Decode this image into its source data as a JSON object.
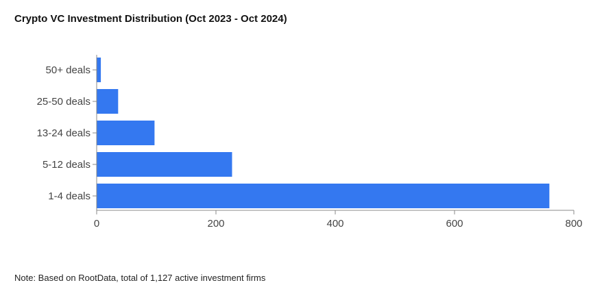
{
  "title": "Crypto VC Investment Distribution (Oct 2023 - Oct 2024)",
  "note": "Note: Based on RootData, total of 1,127 active investment firms",
  "chart_data": {
    "type": "bar",
    "orientation": "horizontal",
    "title": "Crypto VC Investment Distribution (Oct 2023 - Oct 2024)",
    "categories": [
      "50+ deals",
      "25-50 deals",
      "13-24 deals",
      "5-12 deals",
      "1-4 deals"
    ],
    "values": [
      7,
      36,
      97,
      227,
      759
    ],
    "xlim": [
      0,
      800
    ],
    "xticks": [
      0,
      200,
      400,
      600,
      800
    ],
    "grid": false,
    "color": "#3478f0"
  }
}
